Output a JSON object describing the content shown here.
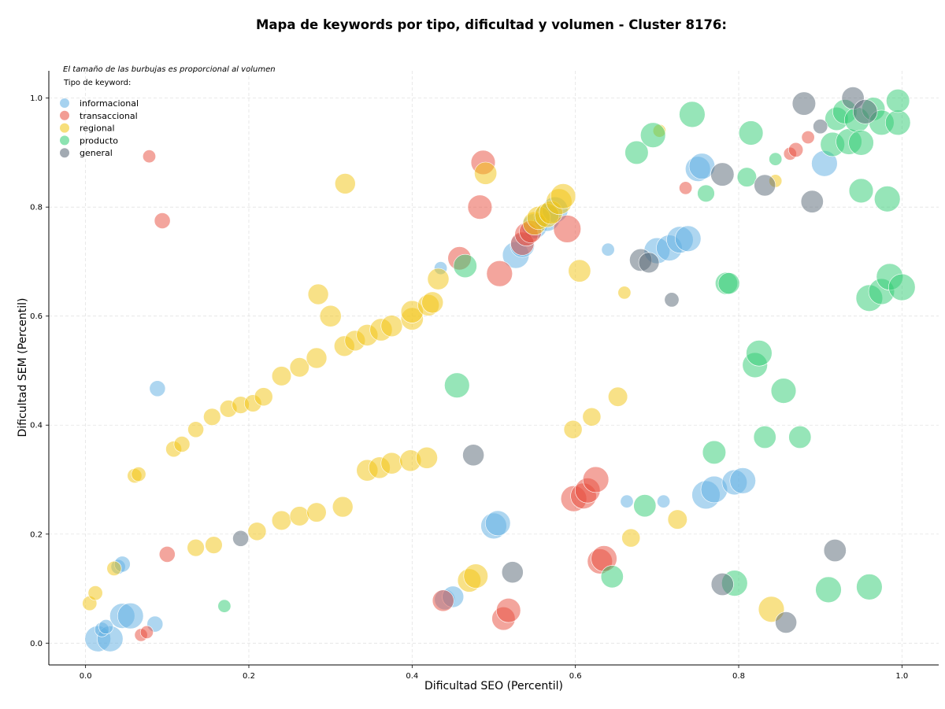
{
  "chart_data": {
    "type": "scatter",
    "title": "Mapa de keywords por tipo, dificultad y volumen - Cluster 8176:",
    "note": "El tamaño de las burbujas es proporcional al volumen",
    "xlabel": "Dificultad SEO (Percentil)",
    "ylabel": "Dificultad SEM (Percentil)",
    "xlim": [
      -0.045,
      1.045
    ],
    "ylim": [
      -0.04,
      1.05
    ],
    "xticks": [
      "0.0",
      "0.2",
      "0.4",
      "0.6",
      "0.8",
      "1.0"
    ],
    "yticks": [
      "0.0",
      "0.2",
      "0.4",
      "0.6",
      "0.8",
      "1.0"
    ],
    "grid": true,
    "legend": {
      "title": "Tipo de keyword:",
      "position": "top-left"
    },
    "series": [
      {
        "name": "informacional",
        "color": "#5DADE2",
        "points": [
          [
            0.015,
            0.008,
            1.6
          ],
          [
            0.03,
            0.008,
            1.6
          ],
          [
            0.02,
            0.025,
            0.5
          ],
          [
            0.025,
            0.03,
            0.5
          ],
          [
            0.045,
            0.05,
            1.5
          ],
          [
            0.055,
            0.05,
            1.6
          ],
          [
            0.085,
            0.035,
            0.6
          ],
          [
            0.04,
            0.14,
            0.5
          ],
          [
            0.045,
            0.145,
            0.6
          ],
          [
            0.088,
            0.467,
            0.6
          ],
          [
            0.435,
            0.688,
            0.4
          ],
          [
            0.44,
            0.08,
            1.0
          ],
          [
            0.45,
            0.085,
            1.1
          ],
          [
            0.5,
            0.215,
            1.6
          ],
          [
            0.505,
            0.22,
            1.5
          ],
          [
            0.527,
            0.712,
            1.7
          ],
          [
            0.535,
            0.73,
            1.4
          ],
          [
            0.55,
            0.765,
            1.5
          ],
          [
            0.565,
            0.78,
            1.7
          ],
          [
            0.575,
            0.795,
            1.6
          ],
          [
            0.64,
            0.722,
            0.4
          ],
          [
            0.663,
            0.26,
            0.4
          ],
          [
            0.708,
            0.26,
            0.4
          ],
          [
            0.7,
            0.72,
            1.6
          ],
          [
            0.715,
            0.725,
            1.6
          ],
          [
            0.728,
            0.74,
            1.7
          ],
          [
            0.738,
            0.742,
            1.6
          ],
          [
            0.75,
            0.87,
            1.5
          ],
          [
            0.755,
            0.875,
            1.6
          ],
          [
            0.76,
            0.272,
            1.9
          ],
          [
            0.77,
            0.282,
            1.7
          ],
          [
            0.795,
            0.295,
            1.5
          ],
          [
            0.805,
            0.298,
            1.6
          ],
          [
            0.905,
            0.88,
            1.6
          ]
        ]
      },
      {
        "name": "transaccional",
        "color": "#E74C3C",
        "points": [
          [
            0.068,
            0.015,
            0.4
          ],
          [
            0.075,
            0.02,
            0.4
          ],
          [
            0.078,
            0.893,
            0.4
          ],
          [
            0.094,
            0.775,
            0.6
          ],
          [
            0.1,
            0.163,
            0.6
          ],
          [
            0.438,
            0.078,
            1.1
          ],
          [
            0.458,
            0.706,
            1.3
          ],
          [
            0.483,
            0.8,
            1.4
          ],
          [
            0.487,
            0.882,
            1.4
          ],
          [
            0.507,
            0.678,
            1.6
          ],
          [
            0.512,
            0.045,
            1.3
          ],
          [
            0.518,
            0.06,
            1.4
          ],
          [
            0.535,
            0.733,
            1.3
          ],
          [
            0.54,
            0.75,
            1.3
          ],
          [
            0.545,
            0.755,
            1.2
          ],
          [
            0.59,
            0.76,
            1.8
          ],
          [
            0.598,
            0.265,
            1.6
          ],
          [
            0.61,
            0.27,
            1.6
          ],
          [
            0.615,
            0.28,
            1.5
          ],
          [
            0.625,
            0.3,
            1.6
          ],
          [
            0.63,
            0.15,
            1.5
          ],
          [
            0.635,
            0.155,
            1.6
          ],
          [
            0.735,
            0.835,
            0.4
          ],
          [
            0.863,
            0.898,
            0.4
          ],
          [
            0.87,
            0.905,
            0.5
          ],
          [
            0.885,
            0.928,
            0.4
          ]
        ]
      },
      {
        "name": "regional",
        "color": "#F1C40F",
        "points": [
          [
            0.005,
            0.073,
            0.5
          ],
          [
            0.012,
            0.092,
            0.5
          ],
          [
            0.035,
            0.137,
            0.5
          ],
          [
            0.06,
            0.307,
            0.5
          ],
          [
            0.065,
            0.31,
            0.5
          ],
          [
            0.108,
            0.356,
            0.6
          ],
          [
            0.118,
            0.365,
            0.6
          ],
          [
            0.135,
            0.392,
            0.6
          ],
          [
            0.135,
            0.175,
            0.7
          ],
          [
            0.155,
            0.415,
            0.7
          ],
          [
            0.157,
            0.18,
            0.7
          ],
          [
            0.175,
            0.43,
            0.7
          ],
          [
            0.19,
            0.437,
            0.7
          ],
          [
            0.205,
            0.44,
            0.7
          ],
          [
            0.21,
            0.205,
            0.8
          ],
          [
            0.218,
            0.452,
            0.8
          ],
          [
            0.24,
            0.225,
            0.9
          ],
          [
            0.24,
            0.49,
            0.9
          ],
          [
            0.262,
            0.506,
            0.9
          ],
          [
            0.262,
            0.233,
            0.9
          ],
          [
            0.283,
            0.24,
            0.9
          ],
          [
            0.283,
            0.523,
            1.0
          ],
          [
            0.285,
            0.64,
            1.0
          ],
          [
            0.3,
            0.6,
            1.1
          ],
          [
            0.315,
            0.25,
            1.0
          ],
          [
            0.317,
            0.545,
            1.0
          ],
          [
            0.318,
            0.843,
            1.0
          ],
          [
            0.33,
            0.555,
            1.0
          ],
          [
            0.345,
            0.565,
            1.1
          ],
          [
            0.345,
            0.317,
            1.1
          ],
          [
            0.36,
            0.322,
            1.1
          ],
          [
            0.362,
            0.575,
            1.2
          ],
          [
            0.375,
            0.33,
            1.1
          ],
          [
            0.375,
            0.582,
            1.1
          ],
          [
            0.398,
            0.335,
            1.1
          ],
          [
            0.4,
            0.595,
            1.2
          ],
          [
            0.4,
            0.608,
            1.2
          ],
          [
            0.418,
            0.34,
            1.1
          ],
          [
            0.42,
            0.62,
            1.1
          ],
          [
            0.425,
            0.625,
            1.1
          ],
          [
            0.432,
            0.668,
            1.1
          ],
          [
            0.47,
            0.115,
            1.3
          ],
          [
            0.478,
            0.123,
            1.4
          ],
          [
            0.49,
            0.862,
            1.2
          ],
          [
            0.55,
            0.77,
            1.3
          ],
          [
            0.555,
            0.78,
            1.3
          ],
          [
            0.565,
            0.785,
            1.4
          ],
          [
            0.57,
            0.79,
            1.3
          ],
          [
            0.58,
            0.81,
            1.6
          ],
          [
            0.585,
            0.82,
            1.5
          ],
          [
            0.597,
            0.392,
            0.8
          ],
          [
            0.605,
            0.683,
            1.2
          ],
          [
            0.62,
            0.415,
            0.8
          ],
          [
            0.652,
            0.452,
            0.9
          ],
          [
            0.66,
            0.643,
            0.4
          ],
          [
            0.668,
            0.193,
            0.8
          ],
          [
            0.703,
            0.94,
            0.4
          ],
          [
            0.725,
            0.227,
            0.9
          ],
          [
            0.84,
            0.062,
            1.6
          ],
          [
            0.845,
            0.848,
            0.4
          ]
        ]
      },
      {
        "name": "producto",
        "color": "#2ECC71",
        "points": [
          [
            0.17,
            0.068,
            0.4
          ],
          [
            0.455,
            0.473,
            1.5
          ],
          [
            0.465,
            0.692,
            1.3
          ],
          [
            0.645,
            0.122,
            1.2
          ],
          [
            0.675,
            0.9,
            1.3
          ],
          [
            0.685,
            0.252,
            1.2
          ],
          [
            0.695,
            0.932,
            1.5
          ],
          [
            0.743,
            0.97,
            1.6
          ],
          [
            0.76,
            0.825,
            0.7
          ],
          [
            0.77,
            0.35,
            1.3
          ],
          [
            0.785,
            0.66,
            1.2
          ],
          [
            0.788,
            0.66,
            1.1
          ],
          [
            0.795,
            0.11,
            1.6
          ],
          [
            0.81,
            0.855,
            0.9
          ],
          [
            0.815,
            0.936,
            1.4
          ],
          [
            0.82,
            0.51,
            1.5
          ],
          [
            0.825,
            0.532,
            1.6
          ],
          [
            0.832,
            0.378,
            1.2
          ],
          [
            0.845,
            0.888,
            0.4
          ],
          [
            0.855,
            0.463,
            1.5
          ],
          [
            0.875,
            0.378,
            1.2
          ],
          [
            0.91,
            0.098,
            1.6
          ],
          [
            0.915,
            0.915,
            1.4
          ],
          [
            0.92,
            0.962,
            1.3
          ],
          [
            0.93,
            0.975,
            1.4
          ],
          [
            0.935,
            0.92,
            1.6
          ],
          [
            0.945,
            0.96,
            1.5
          ],
          [
            0.95,
            0.918,
            1.5
          ],
          [
            0.95,
            0.83,
            1.4
          ],
          [
            0.96,
            0.103,
            1.6
          ],
          [
            0.965,
            0.98,
            1.3
          ],
          [
            0.975,
            0.955,
            1.5
          ],
          [
            0.96,
            0.633,
            1.7
          ],
          [
            0.975,
            0.645,
            1.6
          ],
          [
            0.982,
            0.815,
            1.6
          ],
          [
            0.985,
            0.672,
            1.7
          ],
          [
            0.995,
            0.955,
            1.5
          ],
          [
            1.0,
            0.653,
            1.7
          ],
          [
            0.995,
            0.995,
            1.3
          ]
        ]
      },
      {
        "name": "general",
        "color": "#566573",
        "points": [
          [
            0.19,
            0.192,
            0.6
          ],
          [
            0.475,
            0.345,
            1.1
          ],
          [
            0.523,
            0.13,
            1.1
          ],
          [
            0.68,
            0.703,
            1.2
          ],
          [
            0.69,
            0.698,
            1.0
          ],
          [
            0.718,
            0.63,
            0.5
          ],
          [
            0.78,
            0.86,
            1.3
          ],
          [
            0.78,
            0.108,
            1.2
          ],
          [
            0.832,
            0.84,
            1.1
          ],
          [
            0.858,
            0.038,
            1.1
          ],
          [
            0.88,
            0.99,
            1.3
          ],
          [
            0.89,
            0.81,
            1.2
          ],
          [
            0.9,
            0.948,
            0.5
          ],
          [
            0.918,
            0.17,
            1.2
          ],
          [
            0.94,
            1.0,
            1.2
          ],
          [
            0.955,
            0.975,
            1.4
          ]
        ]
      }
    ]
  }
}
